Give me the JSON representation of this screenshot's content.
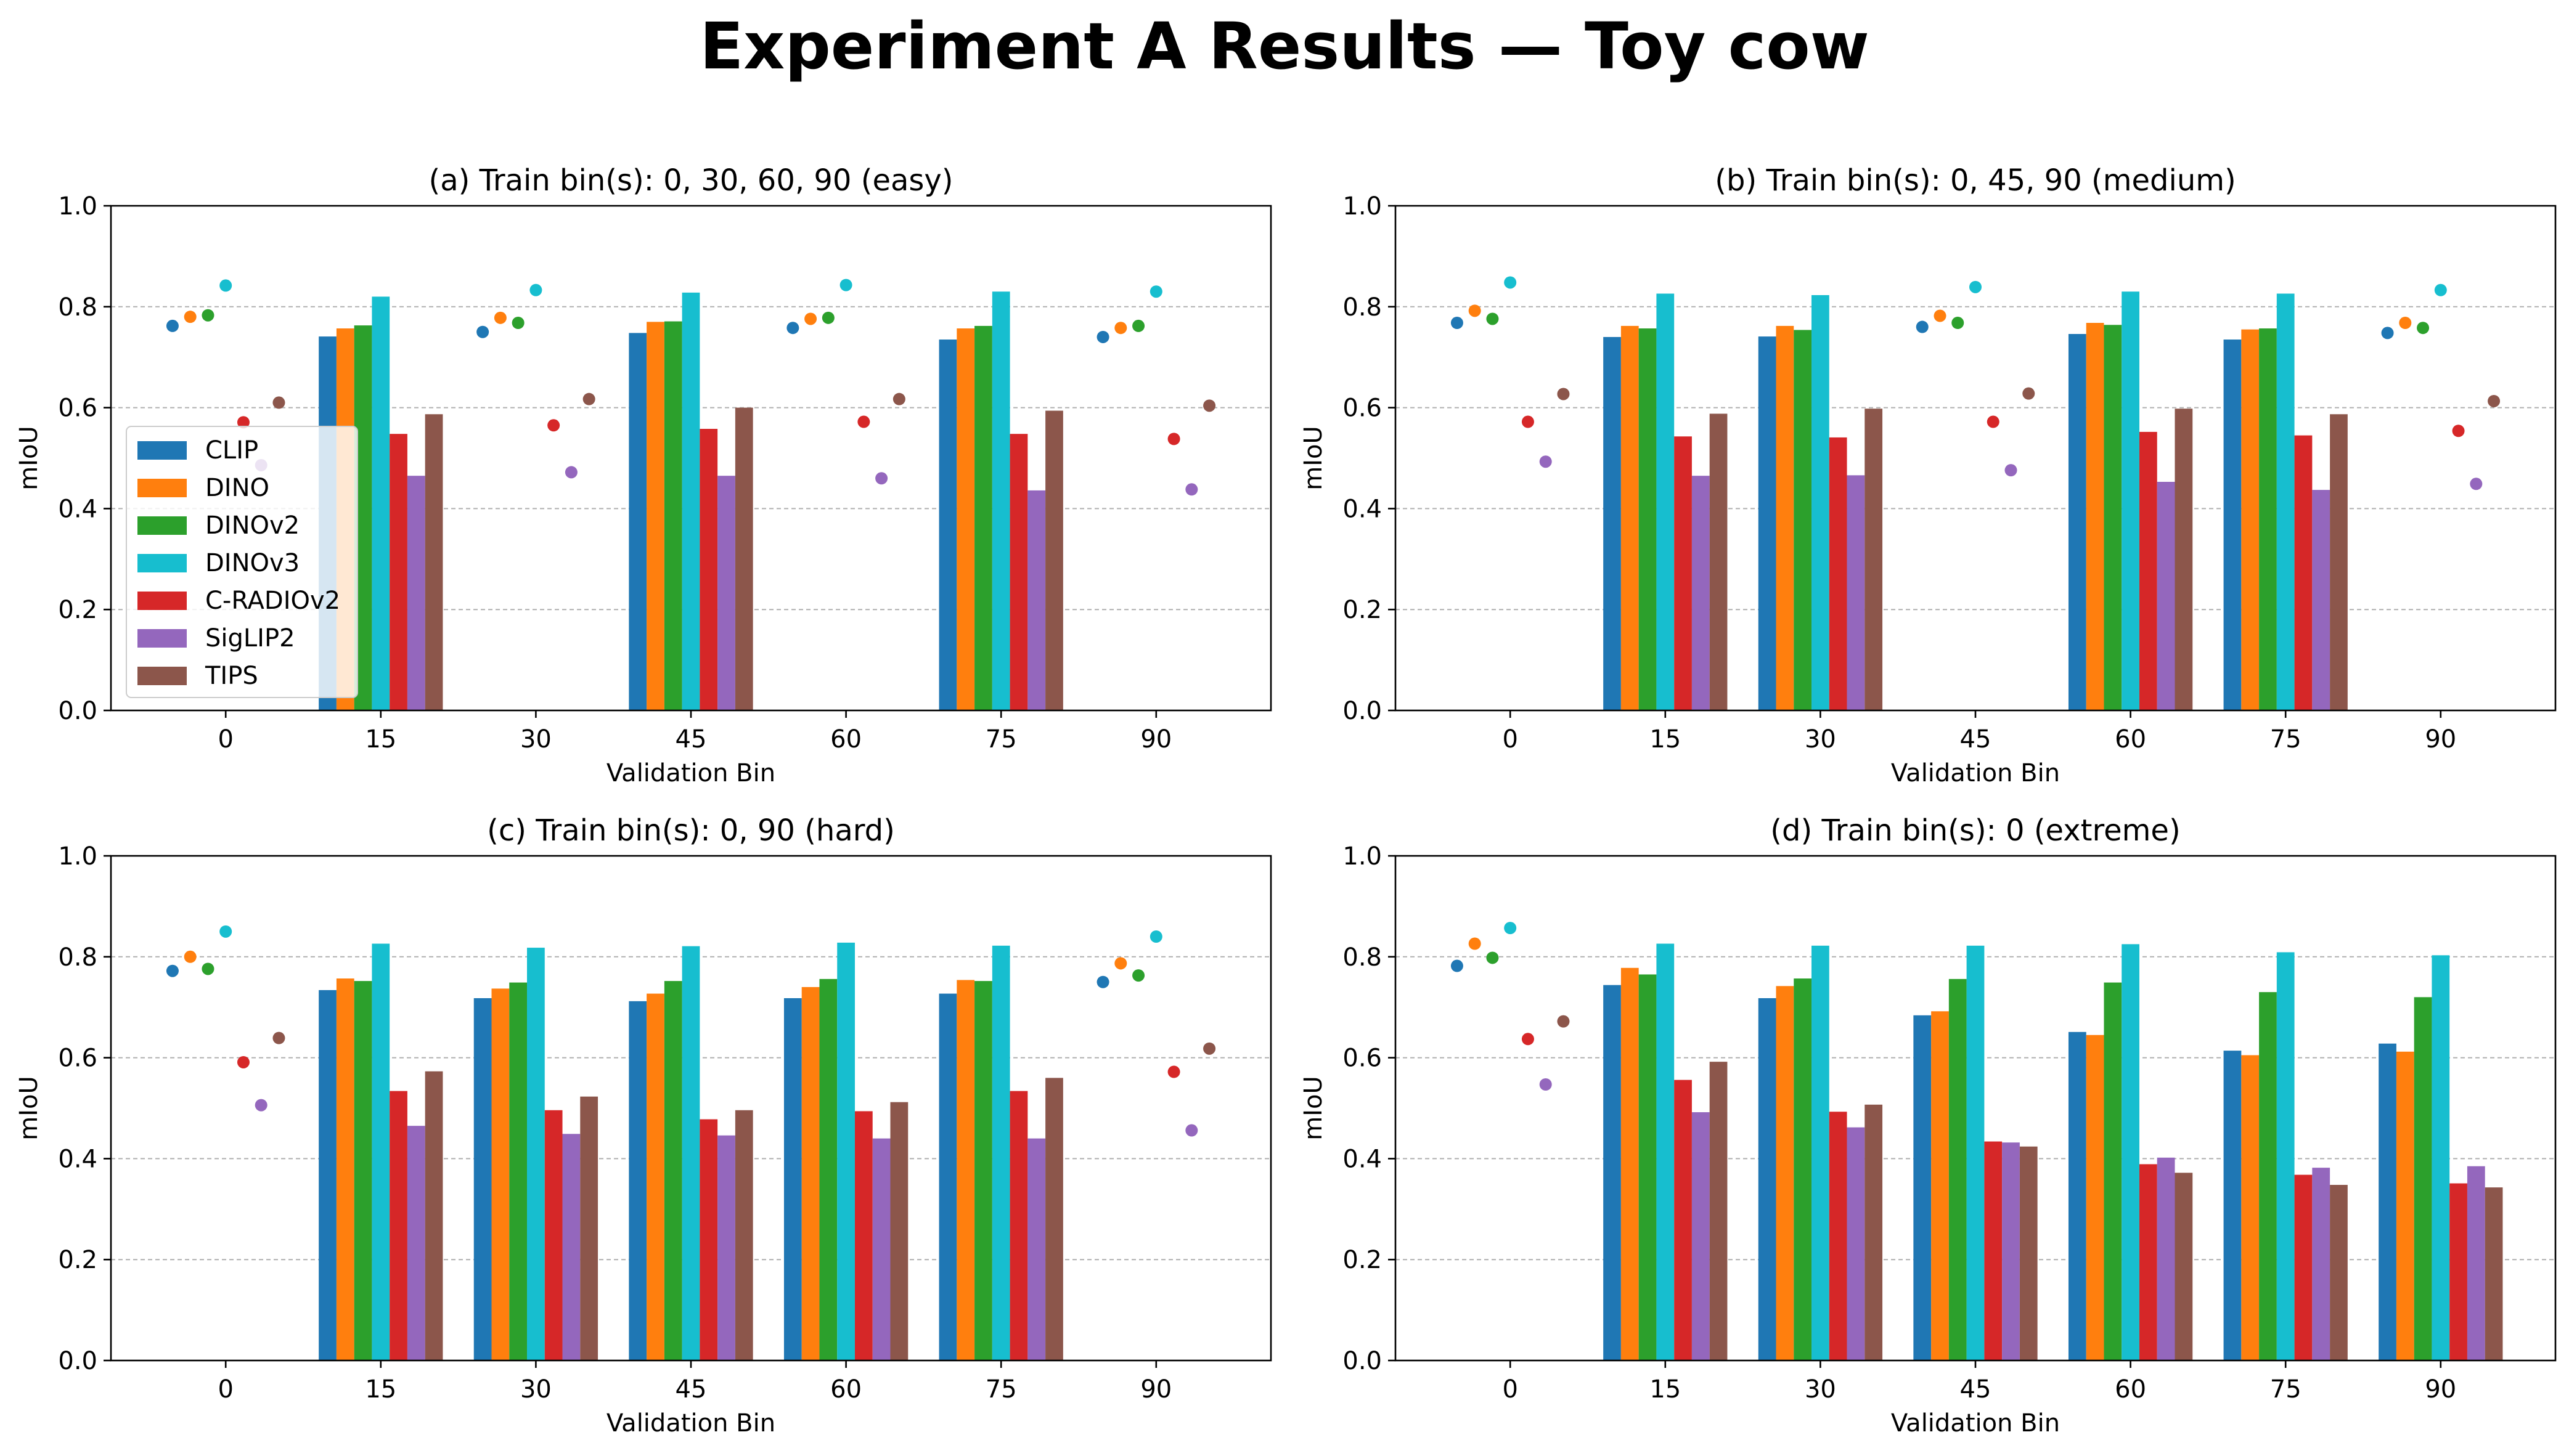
{
  "suptitle": "Experiment A Results — Toy cow",
  "colors": {
    "CLIP": "#1f77b4",
    "DINO": "#ff7f0e",
    "DINOv2": "#2ca02c",
    "DINOv3": "#17becf",
    "C-RADIOv2": "#d62728",
    "SigLIP2": "#9467bd",
    "TIPS": "#8c564b"
  },
  "chart_data": [
    {
      "type": "bar",
      "title": "(a) Train bin(s): 0, 30, 60, 90 (easy)",
      "xlabel": "Validation Bin",
      "ylabel": "mIoU",
      "ylim": [
        0,
        1.0
      ],
      "yticks": [
        "0.0",
        "0.2",
        "0.4",
        "0.6",
        "0.8",
        "1.0"
      ],
      "grid": "y dashed",
      "legend": {
        "location": "left",
        "entries": [
          "CLIP",
          "DINO",
          "DINOv2",
          "DINOv3",
          "C-RADIOv2",
          "SigLIP2",
          "TIPS"
        ]
      },
      "categories": [
        "0",
        "15",
        "30",
        "45",
        "60",
        "75",
        "90"
      ],
      "train_bins": [
        "0",
        "30",
        "60",
        "90"
      ],
      "series": [
        {
          "name": "CLIP",
          "values": [
            0.762,
            0.741,
            0.75,
            0.748,
            0.758,
            0.735,
            0.74
          ]
        },
        {
          "name": "DINO",
          "values": [
            0.78,
            0.757,
            0.778,
            0.77,
            0.776,
            0.757,
            0.758
          ]
        },
        {
          "name": "DINOv2",
          "values": [
            0.783,
            0.763,
            0.768,
            0.771,
            0.778,
            0.762,
            0.762
          ]
        },
        {
          "name": "DINOv3",
          "values": [
            0.842,
            0.82,
            0.833,
            0.828,
            0.843,
            0.83,
            0.83
          ]
        },
        {
          "name": "C-RADIOv2",
          "values": [
            0.571,
            0.548,
            0.565,
            0.558,
            0.572,
            0.548,
            0.538
          ]
        },
        {
          "name": "SigLIP2",
          "values": [
            0.486,
            0.465,
            0.472,
            0.465,
            0.46,
            0.436,
            0.438
          ]
        },
        {
          "name": "TIPS",
          "values": [
            0.61,
            0.587,
            0.617,
            0.6,
            0.617,
            0.594,
            0.604
          ]
        }
      ]
    },
    {
      "type": "bar",
      "title": "(b) Train bin(s): 0, 45, 90 (medium)",
      "xlabel": "Validation Bin",
      "ylabel": "mIoU",
      "ylim": [
        0,
        1.0
      ],
      "yticks": [
        "0.0",
        "0.2",
        "0.4",
        "0.6",
        "0.8",
        "1.0"
      ],
      "grid": "y dashed",
      "categories": [
        "0",
        "15",
        "30",
        "45",
        "60",
        "75",
        "90"
      ],
      "train_bins": [
        "0",
        "45",
        "90"
      ],
      "series": [
        {
          "name": "CLIP",
          "values": [
            0.768,
            0.74,
            0.741,
            0.76,
            0.746,
            0.735,
            0.748
          ]
        },
        {
          "name": "DINO",
          "values": [
            0.792,
            0.762,
            0.762,
            0.782,
            0.768,
            0.755,
            0.768
          ]
        },
        {
          "name": "DINOv2",
          "values": [
            0.776,
            0.757,
            0.754,
            0.768,
            0.764,
            0.757,
            0.758
          ]
        },
        {
          "name": "DINOv3",
          "values": [
            0.848,
            0.826,
            0.823,
            0.839,
            0.83,
            0.826,
            0.833
          ]
        },
        {
          "name": "C-RADIOv2",
          "values": [
            0.572,
            0.543,
            0.541,
            0.572,
            0.552,
            0.545,
            0.554
          ]
        },
        {
          "name": "SigLIP2",
          "values": [
            0.493,
            0.465,
            0.466,
            0.476,
            0.453,
            0.437,
            0.449
          ]
        },
        {
          "name": "TIPS",
          "values": [
            0.627,
            0.588,
            0.598,
            0.628,
            0.598,
            0.587,
            0.613
          ]
        }
      ]
    },
    {
      "type": "bar",
      "title": "(c) Train bin(s): 0, 90 (hard)",
      "xlabel": "Validation Bin",
      "ylabel": "mIoU",
      "ylim": [
        0,
        1.0
      ],
      "yticks": [
        "0.0",
        "0.2",
        "0.4",
        "0.6",
        "0.8",
        "1.0"
      ],
      "grid": "y dashed",
      "categories": [
        "0",
        "15",
        "30",
        "45",
        "60",
        "75",
        "90"
      ],
      "train_bins": [
        "0",
        "90"
      ],
      "series": [
        {
          "name": "CLIP",
          "values": [
            0.772,
            0.734,
            0.718,
            0.712,
            0.718,
            0.727,
            0.75
          ]
        },
        {
          "name": "DINO",
          "values": [
            0.8,
            0.757,
            0.737,
            0.727,
            0.74,
            0.754,
            0.787
          ]
        },
        {
          "name": "DINOv2",
          "values": [
            0.776,
            0.752,
            0.749,
            0.752,
            0.756,
            0.752,
            0.763
          ]
        },
        {
          "name": "DINOv3",
          "values": [
            0.85,
            0.826,
            0.818,
            0.821,
            0.828,
            0.822,
            0.84
          ]
        },
        {
          "name": "C-RADIOv2",
          "values": [
            0.591,
            0.534,
            0.496,
            0.478,
            0.494,
            0.534,
            0.572
          ]
        },
        {
          "name": "SigLIP2",
          "values": [
            0.506,
            0.465,
            0.449,
            0.446,
            0.44,
            0.44,
            0.456
          ]
        },
        {
          "name": "TIPS",
          "values": [
            0.639,
            0.573,
            0.523,
            0.496,
            0.512,
            0.56,
            0.618
          ]
        }
      ]
    },
    {
      "type": "bar",
      "title": "(d) Train bin(s): 0 (extreme)",
      "xlabel": "Validation Bin",
      "ylabel": "mIoU",
      "ylim": [
        0,
        1.0
      ],
      "yticks": [
        "0.0",
        "0.2",
        "0.4",
        "0.6",
        "0.8",
        "1.0"
      ],
      "grid": "y dashed",
      "categories": [
        "0",
        "15",
        "30",
        "45",
        "60",
        "75",
        "90"
      ],
      "train_bins": [
        "0"
      ],
      "series": [
        {
          "name": "CLIP",
          "values": [
            0.782,
            0.744,
            0.718,
            0.684,
            0.651,
            0.614,
            0.628
          ]
        },
        {
          "name": "DINO",
          "values": [
            0.826,
            0.778,
            0.742,
            0.692,
            0.645,
            0.605,
            0.612
          ]
        },
        {
          "name": "DINOv2",
          "values": [
            0.798,
            0.765,
            0.757,
            0.756,
            0.749,
            0.73,
            0.72
          ]
        },
        {
          "name": "DINOv3",
          "values": [
            0.857,
            0.826,
            0.822,
            0.822,
            0.825,
            0.809,
            0.803
          ]
        },
        {
          "name": "C-RADIOv2",
          "values": [
            0.637,
            0.556,
            0.493,
            0.434,
            0.389,
            0.368,
            0.351
          ]
        },
        {
          "name": "SigLIP2",
          "values": [
            0.547,
            0.492,
            0.462,
            0.432,
            0.402,
            0.382,
            0.385
          ]
        },
        {
          "name": "TIPS",
          "values": [
            0.672,
            0.592,
            0.507,
            0.424,
            0.372,
            0.348,
            0.343
          ]
        }
      ]
    }
  ]
}
